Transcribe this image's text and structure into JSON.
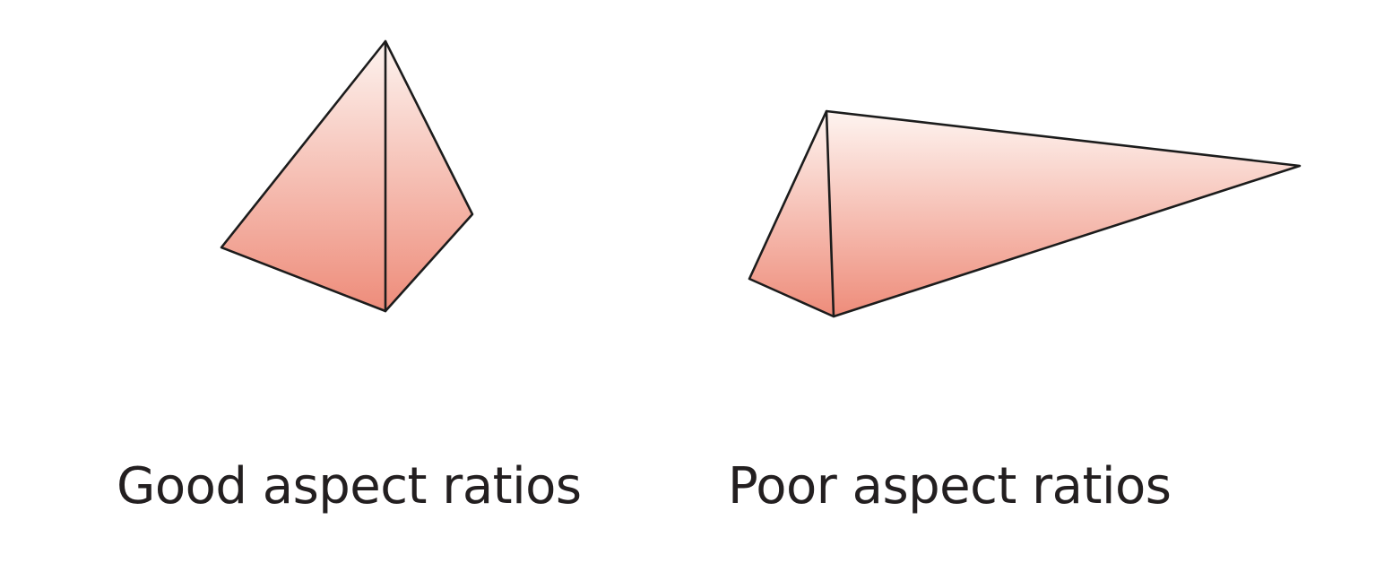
{
  "figures": [
    {
      "id": "good",
      "caption": "Good aspect ratios"
    },
    {
      "id": "poor",
      "caption": "Poor aspect ratios"
    }
  ],
  "colors": {
    "face_top": "#fdf1ec",
    "face_bottom": "#ee8e7c",
    "edge": "#1c1c1c",
    "text": "#231f20",
    "background": "#ffffff"
  }
}
